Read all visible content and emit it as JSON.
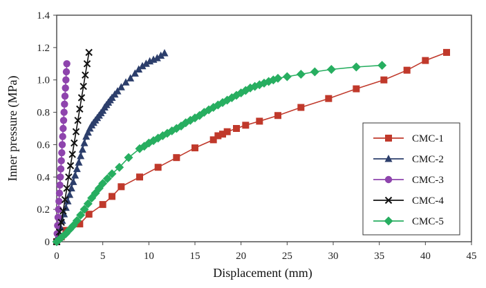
{
  "chart_data": {
    "type": "line",
    "title": "",
    "xlabel": "Displacement (mm)",
    "ylabel": "Inner pressure (MPa)",
    "xlim": [
      0,
      45
    ],
    "ylim": [
      0,
      1.4
    ],
    "xticks": [
      "0",
      "5",
      "10",
      "15",
      "20",
      "25",
      "30",
      "35",
      "40",
      "45"
    ],
    "yticks": [
      "0",
      "0.2",
      "0.4",
      "0.6",
      "0.8",
      "1.0",
      "1.2",
      "1.4"
    ],
    "grid": false,
    "legend_position": "right",
    "series": [
      {
        "name": "CMC-1",
        "color": "#c0392b",
        "marker": "square",
        "x": [
          0,
          0.5,
          1.0,
          2.5,
          3.5,
          5.0,
          6.0,
          7.0,
          9.0,
          11.0,
          13.0,
          15.0,
          17.0,
          17.5,
          18.0,
          18.5,
          19.5,
          20.5,
          22.0,
          24.0,
          26.5,
          29.5,
          32.5,
          35.5,
          38.0,
          40.0,
          42.3
        ],
        "y": [
          0,
          0.03,
          0.07,
          0.11,
          0.17,
          0.23,
          0.28,
          0.34,
          0.4,
          0.46,
          0.52,
          0.58,
          0.63,
          0.655,
          0.665,
          0.68,
          0.7,
          0.72,
          0.745,
          0.78,
          0.83,
          0.885,
          0.945,
          1.0,
          1.06,
          1.12,
          1.17
        ]
      },
      {
        "name": "CMC-2",
        "color": "#2c3e6b",
        "marker": "triangle",
        "x": [
          0,
          0.2,
          0.4,
          0.6,
          0.8,
          1.0,
          1.2,
          1.4,
          1.6,
          1.8,
          2.0,
          2.2,
          2.4,
          2.6,
          2.8,
          3.0,
          3.2,
          3.4,
          3.6,
          3.8,
          4.0,
          4.2,
          4.4,
          4.6,
          4.8,
          5.0,
          5.2,
          5.4,
          5.6,
          5.8,
          6.0,
          6.3,
          6.6,
          7.0,
          7.5,
          8.0,
          8.5,
          8.9,
          9.3,
          9.7,
          10.1,
          10.5,
          10.9,
          11.3,
          11.7
        ],
        "y": [
          0,
          0.04,
          0.09,
          0.13,
          0.17,
          0.21,
          0.25,
          0.29,
          0.33,
          0.37,
          0.41,
          0.45,
          0.49,
          0.53,
          0.57,
          0.61,
          0.65,
          0.675,
          0.7,
          0.72,
          0.735,
          0.75,
          0.765,
          0.78,
          0.795,
          0.81,
          0.83,
          0.845,
          0.86,
          0.875,
          0.89,
          0.91,
          0.93,
          0.955,
          0.985,
          1.01,
          1.04,
          1.065,
          1.085,
          1.1,
          1.115,
          1.125,
          1.135,
          1.15,
          1.165
        ]
      },
      {
        "name": "CMC-3",
        "color": "#8e44ad",
        "marker": "circle",
        "x": [
          0.02,
          0.05,
          0.1,
          0.15,
          0.2,
          0.25,
          0.3,
          0.35,
          0.4,
          0.45,
          0.5,
          0.55,
          0.6,
          0.65,
          0.7,
          0.75,
          0.8,
          0.85,
          0.9,
          0.95,
          1.0,
          1.05,
          1.1
        ],
        "y": [
          0.0,
          0.05,
          0.1,
          0.15,
          0.2,
          0.25,
          0.3,
          0.35,
          0.4,
          0.45,
          0.5,
          0.55,
          0.6,
          0.65,
          0.7,
          0.75,
          0.8,
          0.85,
          0.9,
          0.95,
          1.0,
          1.05,
          1.1
        ]
      },
      {
        "name": "CMC-4",
        "color": "#111111",
        "marker": "x",
        "x": [
          0.0,
          0.3,
          0.5,
          0.7,
          0.9,
          1.1,
          1.3,
          1.5,
          1.7,
          1.9,
          2.1,
          2.3,
          2.5,
          2.7,
          2.9,
          3.1,
          3.3,
          3.5
        ],
        "y": [
          0.0,
          0.06,
          0.12,
          0.19,
          0.26,
          0.33,
          0.4,
          0.47,
          0.54,
          0.61,
          0.68,
          0.75,
          0.82,
          0.89,
          0.96,
          1.03,
          1.1,
          1.17
        ]
      },
      {
        "name": "CMC-5",
        "color": "#27ae60",
        "marker": "diamond",
        "x": [
          0,
          0.3,
          0.6,
          1.0,
          1.4,
          1.8,
          2.2,
          2.6,
          3.0,
          3.4,
          3.8,
          4.2,
          4.6,
          5.0,
          5.5,
          6.0,
          6.8,
          7.8,
          9.0,
          9.5,
          10.0,
          10.5,
          11.0,
          11.5,
          12.0,
          12.5,
          13.0,
          13.5,
          14.0,
          14.5,
          15.0,
          15.5,
          16.0,
          16.5,
          17.0,
          17.5,
          18.0,
          18.5,
          19.0,
          19.5,
          20.0,
          20.5,
          21.0,
          21.5,
          22.0,
          22.5,
          23.0,
          23.5,
          24.0,
          25.0,
          26.5,
          28.0,
          29.8,
          32.5,
          35.3
        ],
        "y": [
          0.0,
          0.015,
          0.03,
          0.05,
          0.075,
          0.1,
          0.13,
          0.165,
          0.2,
          0.235,
          0.27,
          0.3,
          0.33,
          0.36,
          0.39,
          0.42,
          0.46,
          0.52,
          0.575,
          0.59,
          0.61,
          0.625,
          0.64,
          0.655,
          0.67,
          0.685,
          0.7,
          0.715,
          0.735,
          0.75,
          0.765,
          0.78,
          0.8,
          0.815,
          0.83,
          0.845,
          0.86,
          0.875,
          0.89,
          0.905,
          0.92,
          0.935,
          0.95,
          0.96,
          0.97,
          0.98,
          0.99,
          1.0,
          1.01,
          1.02,
          1.035,
          1.05,
          1.065,
          1.08,
          1.09
        ]
      }
    ]
  }
}
